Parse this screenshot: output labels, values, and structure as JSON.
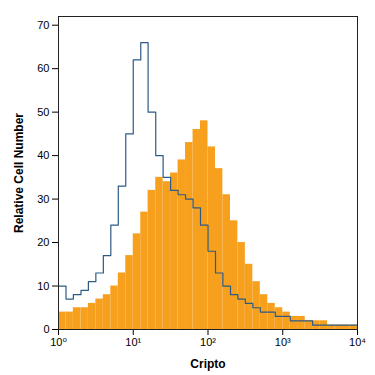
{
  "chart_data": {
    "type": "histogram",
    "xlabel": "Cripto",
    "ylabel": "Relative Cell Number",
    "log": "x",
    "bins": [
      1,
      1.26,
      1.58,
      2,
      2.51,
      3.16,
      3.98,
      5.01,
      6.31,
      7.94,
      10,
      12.6,
      15.8,
      20,
      25.1,
      31.6,
      39.8,
      50.1,
      63.1,
      79.4,
      100,
      126,
      158,
      200,
      251,
      316,
      398,
      501,
      631,
      794,
      1000,
      1260,
      1580,
      2000,
      2510,
      3160,
      3980,
      5010,
      6310,
      7940,
      10000
    ],
    "series": [
      {
        "type": "bar",
        "color": "#f6a01e",
        "values": [
          4,
          4,
          5,
          5,
          6,
          7,
          8,
          10,
          13,
          17,
          22,
          27,
          32,
          35,
          34,
          36,
          39,
          43,
          46,
          48,
          42,
          37,
          31,
          25,
          20,
          15,
          11,
          8,
          6,
          5,
          4,
          3,
          3,
          2,
          2,
          2,
          1,
          1,
          1,
          1
        ]
      },
      {
        "type": "line",
        "color": "#2d5a86",
        "values": [
          10,
          7,
          8,
          9,
          11,
          13,
          17,
          24,
          33,
          45,
          62,
          66,
          50,
          40,
          35,
          32,
          31,
          30,
          28,
          24,
          18,
          13,
          10,
          8,
          7,
          6,
          5,
          4,
          4,
          3,
          3,
          2,
          2,
          2,
          1,
          1,
          1,
          1,
          1,
          1
        ]
      }
    ],
    "xlim": [
      1,
      10000
    ],
    "xticks": [
      {
        "value": 1,
        "label": "10⁰"
      },
      {
        "value": 10,
        "label": "10¹"
      },
      {
        "value": 100,
        "label": "10²"
      },
      {
        "value": 1000,
        "label": "10³"
      },
      {
        "value": 10000,
        "label": "10⁴"
      }
    ],
    "ylim": [
      0,
      72
    ],
    "yticks": [
      0,
      10,
      20,
      30,
      40,
      50,
      60,
      70
    ]
  }
}
